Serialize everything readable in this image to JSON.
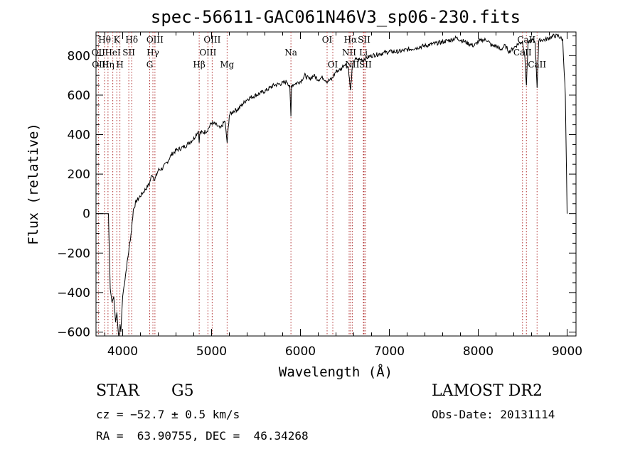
{
  "chart_data": {
    "type": "line",
    "title": "spec-56611-GAC061N46V3_sp06-230.fits",
    "xlabel": "Wavelength (Å)",
    "ylabel": "Flux (relative)",
    "xlim": [
      3700,
      9100
    ],
    "ylim": [
      -620,
      920
    ],
    "x_ticks": [
      4000,
      5000,
      6000,
      7000,
      8000,
      9000
    ],
    "y_ticks": [
      -600,
      -400,
      -200,
      0,
      200,
      400,
      600,
      800
    ],
    "x_tick_labels": [
      "4000",
      "5000",
      "6000",
      "7000",
      "8000",
      "9000"
    ],
    "y_tick_labels": [
      "−600",
      "−400",
      "−200",
      "0",
      "200",
      "400",
      "600",
      "800"
    ],
    "grid": false,
    "series": [
      {
        "x": [
          3700,
          3840,
          3860,
          3880,
          3900,
          3920,
          3935,
          3950,
          3960,
          3970,
          3980,
          3990,
          4000,
          4020,
          4050,
          4080,
          4100,
          4120,
          4150,
          4200,
          4250,
          4300,
          4330,
          4360,
          4400,
          4450,
          4500,
          4550,
          4600,
          4650,
          4700,
          4750,
          4800,
          4850,
          4861,
          4870,
          4900,
          4950,
          5000,
          5050,
          5100,
          5150,
          5175,
          5200,
          5250,
          5300,
          5400,
          5500,
          5600,
          5700,
          5800,
          5850,
          5880,
          5893,
          5900,
          5950,
          6000,
          6050,
          6100,
          6150,
          6200,
          6250,
          6300,
          6350,
          6400,
          6450,
          6500,
          6540,
          6563,
          6580,
          6600,
          6650,
          6700,
          6750,
          6800,
          6900,
          7000,
          7100,
          7200,
          7300,
          7400,
          7500,
          7600,
          7700,
          7750,
          7800,
          7850,
          7900,
          7950,
          8000,
          8050,
          8100,
          8150,
          8200,
          8250,
          8300,
          8350,
          8400,
          8450,
          8498,
          8520,
          8542,
          8560,
          8600,
          8640,
          8662,
          8680,
          8700,
          8750,
          8800,
          8850,
          8900,
          8950,
          8980,
          9000
        ],
        "y": [
          0,
          0,
          -380,
          -450,
          -420,
          -550,
          -500,
          -600,
          -650,
          -560,
          -600,
          -500,
          -420,
          -350,
          -250,
          -150,
          -80,
          20,
          60,
          90,
          120,
          150,
          200,
          170,
          220,
          230,
          260,
          300,
          320,
          330,
          340,
          360,
          380,
          420,
          370,
          410,
          410,
          420,
          460,
          450,
          430,
          470,
          360,
          500,
          520,
          530,
          580,
          600,
          620,
          650,
          660,
          670,
          640,
          490,
          650,
          660,
          670,
          700,
          680,
          700,
          680,
          690,
          670,
          680,
          720,
          730,
          760,
          740,
          620,
          720,
          780,
          780,
          780,
          790,
          800,
          810,
          820,
          820,
          830,
          840,
          850,
          860,
          870,
          880,
          890,
          880,
          870,
          860,
          850,
          870,
          880,
          880,
          850,
          850,
          830,
          850,
          820,
          840,
          860,
          870,
          820,
          650,
          860,
          880,
          870,
          640,
          870,
          880,
          880,
          890,
          900,
          900,
          880,
          600,
          0
        ]
      }
    ],
    "line_labels": [
      {
        "text": "Hθ",
        "x": 3797,
        "row": 1,
        "line": true
      },
      {
        "text": "K",
        "x": 3934,
        "row": 1,
        "line": true
      },
      {
        "text": "Hδ",
        "x": 4102,
        "row": 1,
        "line": true
      },
      {
        "text": "OIII",
        "x": 4363,
        "row": 1,
        "line": true
      },
      {
        "text": "OIII",
        "x": 5007,
        "row": 1,
        "line": true
      },
      {
        "text": "OI",
        "x": 6300,
        "row": 1,
        "line": true
      },
      {
        "text": "Hα",
        "x": 6563,
        "row": 1,
        "line": true
      },
      {
        "text": "SII",
        "x": 6716,
        "row": 1,
        "line": true
      },
      {
        "text": "CaII",
        "x": 8542,
        "row": 1,
        "line": true
      },
      {
        "text": "OII",
        "x": 3727,
        "row": 2,
        "line": true
      },
      {
        "text": "HeI",
        "x": 3889,
        "row": 2,
        "line": true
      },
      {
        "text": "SII",
        "x": 4069,
        "row": 2,
        "line": true
      },
      {
        "text": "Hγ",
        "x": 4340,
        "row": 2,
        "line": true
      },
      {
        "text": "OIII",
        "x": 4959,
        "row": 2,
        "line": true
      },
      {
        "text": "Na",
        "x": 5893,
        "row": 2,
        "line": true
      },
      {
        "text": "NII",
        "x": 6548,
        "row": 2,
        "line": true
      },
      {
        "text": "Li",
        "x": 6708,
        "row": 2,
        "line": true
      },
      {
        "text": "CaII",
        "x": 8498,
        "row": 2,
        "line": true
      },
      {
        "text": "OIII",
        "x": 3750,
        "row": 3,
        "line": false
      },
      {
        "text": "Hη",
        "x": 3835,
        "row": 3,
        "line": true
      },
      {
        "text": "H",
        "x": 3969,
        "row": 3,
        "line": true
      },
      {
        "text": "G",
        "x": 4304,
        "row": 3,
        "line": true
      },
      {
        "text": "Hβ",
        "x": 4861,
        "row": 3,
        "line": true
      },
      {
        "text": "Mg",
        "x": 5175,
        "row": 3,
        "line": true
      },
      {
        "text": "OI",
        "x": 6364,
        "row": 3,
        "line": true
      },
      {
        "text": "NII",
        "x": 6583,
        "row": 3,
        "line": true
      },
      {
        "text": "SII",
        "x": 6731,
        "row": 3,
        "line": true
      },
      {
        "text": "CaII",
        "x": 8662,
        "row": 3,
        "line": true
      }
    ]
  },
  "info": {
    "object_class": "STAR",
    "subclass": "G5",
    "survey": "LAMOST DR2",
    "cz": "cz = −52.7 ± 0.5 km/s",
    "obs_date": "Obs-Date: 20131114",
    "coords": "RA =  63.90755, DEC =  46.34268"
  }
}
